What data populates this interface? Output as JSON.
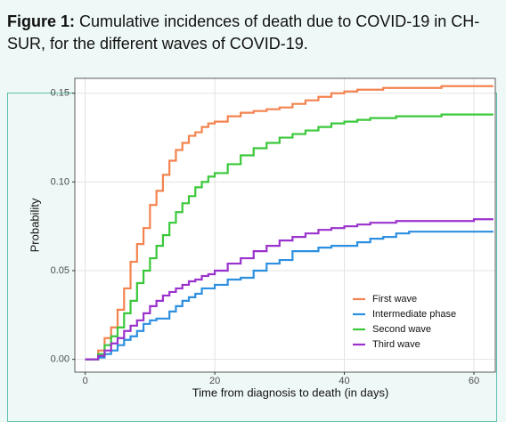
{
  "caption": {
    "label": "Figure 1:",
    "text": "Cumulative incidences of death due to COVID-19 in CH-SUR, for the different waves of COVID-19."
  },
  "chart_data": {
    "type": "step",
    "xlabel": "Time from diagnosis to death (in days)",
    "ylabel": "Probability",
    "x": [
      0,
      1,
      2,
      3,
      4,
      5,
      6,
      7,
      8,
      9,
      10,
      11,
      12,
      13,
      14,
      15,
      16,
      17,
      18,
      19,
      20,
      22,
      24,
      26,
      28,
      30,
      32,
      34,
      36,
      38,
      40,
      42,
      44,
      46,
      48,
      50,
      55,
      60,
      63
    ],
    "series": [
      {
        "name": "First wave",
        "color": "#f4834f",
        "values": [
          0,
          0,
          0.005,
          0.012,
          0.018,
          0.028,
          0.04,
          0.055,
          0.065,
          0.074,
          0.087,
          0.095,
          0.104,
          0.112,
          0.118,
          0.122,
          0.126,
          0.128,
          0.131,
          0.133,
          0.134,
          0.137,
          0.139,
          0.14,
          0.141,
          0.142,
          0.144,
          0.146,
          0.148,
          0.15,
          0.151,
          0.152,
          0.152,
          0.153,
          0.153,
          0.153,
          0.154,
          0.154,
          0.154
        ]
      },
      {
        "name": "Intermediate phase",
        "color": "#2d8fe0",
        "values": [
          0,
          0,
          0.001,
          0.003,
          0.005,
          0.008,
          0.011,
          0.013,
          0.016,
          0.02,
          0.022,
          0.023,
          0.023,
          0.027,
          0.03,
          0.033,
          0.035,
          0.037,
          0.04,
          0.04,
          0.042,
          0.045,
          0.046,
          0.05,
          0.054,
          0.056,
          0.061,
          0.061,
          0.063,
          0.064,
          0.064,
          0.066,
          0.068,
          0.069,
          0.071,
          0.072,
          0.072,
          0.072,
          0.072
        ]
      },
      {
        "name": "Second wave",
        "color": "#3ac83a",
        "values": [
          0,
          0,
          0.003,
          0.008,
          0.013,
          0.018,
          0.026,
          0.033,
          0.043,
          0.05,
          0.057,
          0.064,
          0.07,
          0.077,
          0.083,
          0.088,
          0.092,
          0.097,
          0.1,
          0.103,
          0.105,
          0.11,
          0.115,
          0.119,
          0.122,
          0.125,
          0.127,
          0.129,
          0.131,
          0.133,
          0.134,
          0.135,
          0.136,
          0.136,
          0.137,
          0.137,
          0.138,
          0.138,
          0.138
        ]
      },
      {
        "name": "Third wave",
        "color": "#9a32cd",
        "values": [
          0,
          0,
          0.002,
          0.005,
          0.009,
          0.012,
          0.016,
          0.019,
          0.022,
          0.026,
          0.03,
          0.033,
          0.036,
          0.038,
          0.04,
          0.042,
          0.044,
          0.045,
          0.047,
          0.048,
          0.05,
          0.054,
          0.057,
          0.061,
          0.064,
          0.067,
          0.069,
          0.071,
          0.073,
          0.074,
          0.075,
          0.076,
          0.077,
          0.077,
          0.078,
          0.078,
          0.078,
          0.079,
          0.079
        ]
      }
    ],
    "xlim": [
      -1.6,
      63.3
    ],
    "ylim": [
      -0.0072,
      0.1584
    ],
    "xticks": [
      0,
      20,
      40,
      60
    ],
    "yticks": [
      {
        "value": 0,
        "label": "0.00"
      },
      {
        "value": 0.05,
        "label": "0.05"
      },
      {
        "value": 0.1,
        "label": "0.10"
      },
      {
        "value": 0.15,
        "label": "0.15"
      }
    ],
    "grid": true,
    "legend": "bottom-right"
  }
}
